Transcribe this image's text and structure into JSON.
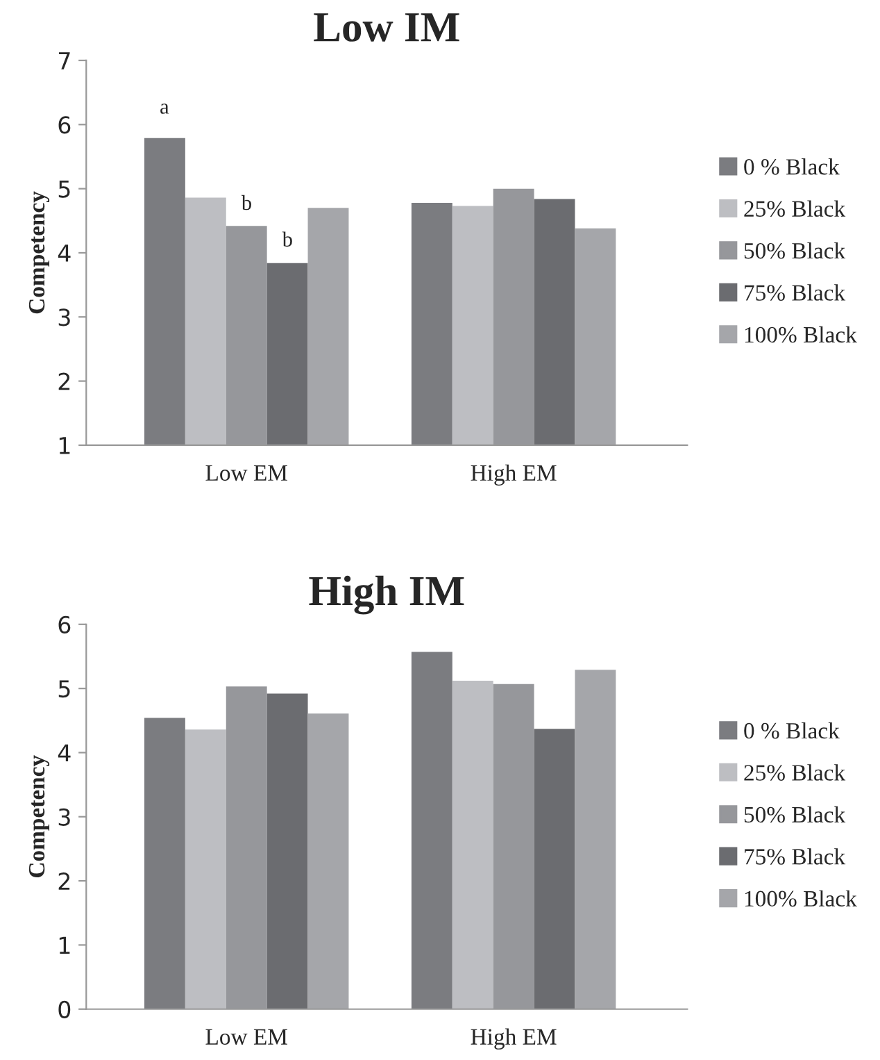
{
  "chart_data": [
    {
      "type": "bar",
      "title": "Low IM",
      "ylabel": "Competency",
      "categories": [
        "Low EM",
        "High EM"
      ],
      "ylim": [
        1,
        7
      ],
      "yticks": [
        1,
        2,
        3,
        4,
        5,
        6,
        7
      ],
      "grid": false,
      "legend": "right",
      "series": [
        {
          "name": "0 % Black",
          "color": "#7b7c80",
          "values": [
            5.79,
            4.78
          ]
        },
        {
          "name": "25% Black",
          "color": "#bdbec2",
          "values": [
            4.86,
            4.73
          ]
        },
        {
          "name": "50% Black",
          "color": "#96979b",
          "values": [
            4.42,
            5.0
          ]
        },
        {
          "name": "75% Black",
          "color": "#6b6c70",
          "values": [
            3.84,
            4.84
          ]
        },
        {
          "name": "100% Black",
          "color": "#a5a6aa",
          "values": [
            4.7,
            4.38
          ]
        }
      ],
      "annotations": [
        "a",
        "b",
        "b"
      ]
    },
    {
      "type": "bar",
      "title": "High IM",
      "ylabel": "Competency",
      "categories": [
        "Low EM",
        "High EM"
      ],
      "ylim": [
        0,
        6
      ],
      "yticks": [
        0,
        1,
        2,
        3,
        4,
        5,
        6
      ],
      "grid": false,
      "legend": "right",
      "series": [
        {
          "name": "0 % Black",
          "color": "#7b7c80",
          "values": [
            4.54,
            5.57
          ]
        },
        {
          "name": "25% Black",
          "color": "#bdbec2",
          "values": [
            4.36,
            5.12
          ]
        },
        {
          "name": "50% Black",
          "color": "#96979b",
          "values": [
            5.03,
            5.07
          ]
        },
        {
          "name": "75% Black",
          "color": "#6b6c70",
          "values": [
            4.92,
            4.37
          ]
        },
        {
          "name": "100% Black",
          "color": "#a5a6aa",
          "values": [
            4.61,
            5.29
          ]
        }
      ]
    }
  ]
}
